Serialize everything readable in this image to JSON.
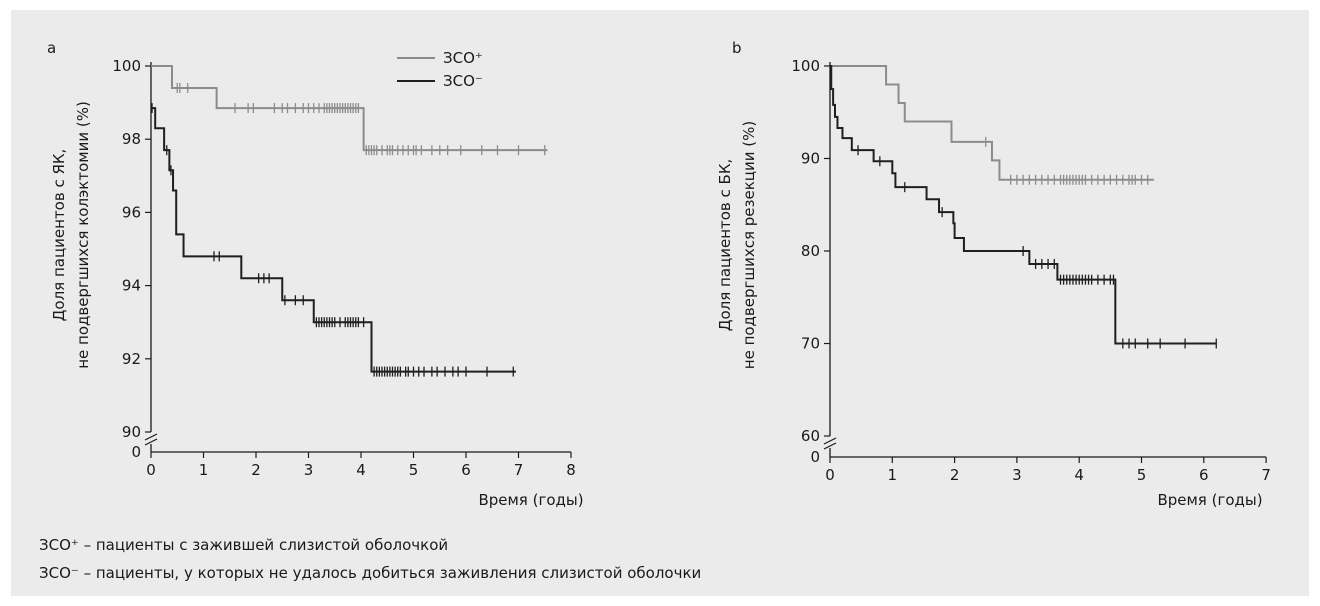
{
  "chart_data": [
    {
      "type": "line",
      "panel_label": "a",
      "xlabel": "Время (годы)",
      "ylabel_line1": "Доля пациентов с ЯК,",
      "ylabel_line2": "не подвергшихся колэктомии (%)",
      "xlim": [
        0,
        8
      ],
      "ylim": [
        90,
        100
      ],
      "axis_break": true,
      "x_ticks": [
        0,
        1,
        2,
        3,
        4,
        5,
        6,
        7,
        8
      ],
      "y_ticks": [
        100,
        98,
        96,
        94,
        92,
        90
      ],
      "y_zero_label": "0",
      "legend": {
        "position": "top-right",
        "entries": [
          "ЗСО⁺",
          "ЗСО⁻"
        ]
      },
      "series": [
        {
          "name": "ЗСО⁺",
          "color": "#8c8c8c",
          "steps": [
            [
              0,
              100
            ],
            [
              0.4,
              99.4
            ],
            [
              1.25,
              98.85
            ],
            [
              4.05,
              97.7
            ],
            [
              7.55,
              97.7
            ]
          ],
          "censor_x": [
            0.5,
            0.55,
            0.7,
            1.6,
            1.85,
            1.95,
            2.35,
            2.5,
            2.6,
            2.75,
            2.9,
            3.0,
            3.1,
            3.2,
            3.3,
            3.35,
            3.4,
            3.45,
            3.5,
            3.55,
            3.6,
            3.65,
            3.7,
            3.75,
            3.8,
            3.85,
            3.9,
            3.95,
            4.1,
            4.15,
            4.2,
            4.25,
            4.3,
            4.4,
            4.5,
            4.55,
            4.6,
            4.7,
            4.8,
            4.9,
            5.0,
            5.05,
            5.15,
            5.35,
            5.5,
            5.65,
            5.9,
            6.3,
            6.6,
            7.0,
            7.5
          ]
        },
        {
          "name": "ЗСО⁻",
          "color": "#1f1f1f",
          "steps": [
            [
              0,
              98.85
            ],
            [
              0.08,
              98.3
            ],
            [
              0.25,
              97.7
            ],
            [
              0.35,
              97.15
            ],
            [
              0.42,
              96.6
            ],
            [
              0.48,
              95.4
            ],
            [
              0.62,
              94.8
            ],
            [
              1.72,
              94.2
            ],
            [
              2.5,
              93.6
            ],
            [
              3.1,
              93.0
            ],
            [
              4.2,
              91.65
            ],
            [
              6.95,
              91.65
            ]
          ],
          "censor_x": [
            0.02,
            0.3,
            0.38,
            1.2,
            1.3,
            2.05,
            2.15,
            2.25,
            2.55,
            2.75,
            2.9,
            3.15,
            3.2,
            3.25,
            3.3,
            3.35,
            3.4,
            3.45,
            3.5,
            3.6,
            3.7,
            3.75,
            3.8,
            3.85,
            3.9,
            3.95,
            4.05,
            4.25,
            4.3,
            4.35,
            4.4,
            4.45,
            4.5,
            4.55,
            4.6,
            4.65,
            4.7,
            4.75,
            4.85,
            4.9,
            5.0,
            5.1,
            5.2,
            5.35,
            5.45,
            5.6,
            5.75,
            5.85,
            6.0,
            6.4,
            6.9
          ]
        }
      ]
    },
    {
      "type": "line",
      "panel_label": "b",
      "xlabel": "Время (годы)",
      "ylabel_line1": "Доля пациентов с БК,",
      "ylabel_line2": "не подвергшихся резекции (%)",
      "xlim": [
        0,
        7
      ],
      "ylim": [
        60,
        100
      ],
      "axis_break": true,
      "x_ticks": [
        0,
        1,
        2,
        3,
        4,
        5,
        6,
        7
      ],
      "y_ticks": [
        100,
        90,
        80,
        70,
        60
      ],
      "y_zero_label": "0",
      "series": [
        {
          "name": "ЗСО⁺",
          "color": "#8c8c8c",
          "steps": [
            [
              0,
              100
            ],
            [
              0.9,
              98
            ],
            [
              1.1,
              96
            ],
            [
              1.2,
              94
            ],
            [
              1.95,
              91.8
            ],
            [
              2.6,
              89.8
            ],
            [
              2.72,
              87.7
            ],
            [
              5.2,
              87.7
            ]
          ],
          "censor_x": [
            2.5,
            2.9,
            3.0,
            3.1,
            3.2,
            3.3,
            3.4,
            3.5,
            3.6,
            3.7,
            3.75,
            3.8,
            3.85,
            3.9,
            3.95,
            4.0,
            4.05,
            4.1,
            4.2,
            4.3,
            4.4,
            4.5,
            4.6,
            4.7,
            4.8,
            4.85,
            4.9,
            5.0,
            5.1
          ]
        },
        {
          "name": "ЗСО⁻",
          "color": "#1f1f1f",
          "steps": [
            [
              0,
              100
            ],
            [
              0.02,
              97.5
            ],
            [
              0.05,
              95.8
            ],
            [
              0.08,
              94.5
            ],
            [
              0.12,
              93.3
            ],
            [
              0.2,
              92.2
            ],
            [
              0.35,
              90.9
            ],
            [
              0.7,
              89.7
            ],
            [
              1.0,
              88.4
            ],
            [
              1.05,
              86.9
            ],
            [
              1.55,
              85.6
            ],
            [
              1.75,
              84.2
            ],
            [
              1.98,
              83
            ],
            [
              2.0,
              81.4
            ],
            [
              2.15,
              80
            ],
            [
              3.15,
              80
            ],
            [
              3.2,
              78.6
            ],
            [
              3.65,
              76.9
            ],
            [
              4.57,
              76.9
            ],
            [
              4.58,
              70
            ],
            [
              6.2,
              70
            ]
          ],
          "censor_x": [
            0.45,
            0.8,
            1.2,
            1.8,
            3.1,
            3.3,
            3.4,
            3.5,
            3.6,
            3.7,
            3.75,
            3.8,
            3.85,
            3.9,
            3.95,
            4.0,
            4.05,
            4.1,
            4.15,
            4.2,
            4.3,
            4.4,
            4.5,
            4.55,
            4.7,
            4.8,
            4.9,
            5.1,
            5.3,
            5.7,
            6.2
          ]
        }
      ]
    }
  ],
  "footnotes": {
    "line1": "ЗСО⁺ – пациенты с зажившей слизистой оболочкой",
    "line2": "ЗСО⁻ – пациенты, у которых не удалось добиться заживления слизистой оболочки"
  }
}
